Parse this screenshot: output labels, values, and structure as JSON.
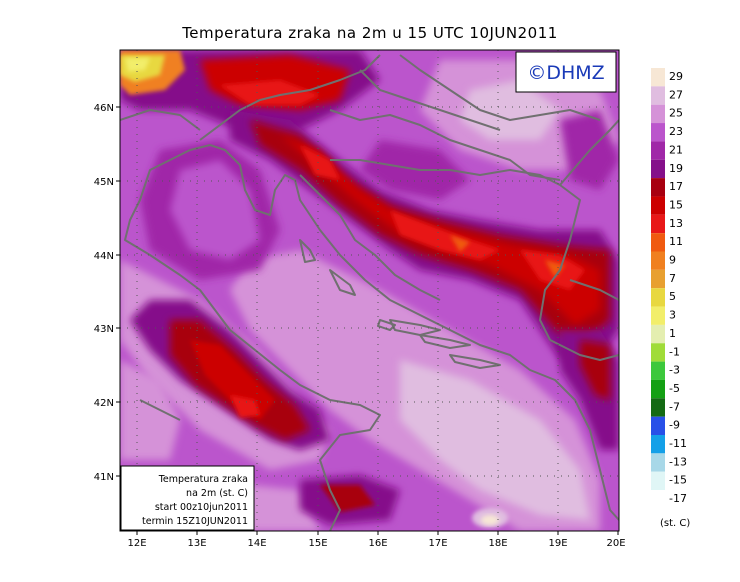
{
  "title": "Temperatura zraka na 2m u 15 UTC 10JUN2011",
  "logo_text": "©DHMZ",
  "lat_ticks": [
    "46N",
    "45N",
    "44N",
    "43N",
    "42N",
    "41N"
  ],
  "lon_ticks": [
    "12E",
    "13E",
    "14E",
    "15E",
    "16E",
    "17E",
    "18E",
    "19E",
    "20E"
  ],
  "info_box": {
    "line1": "Temperatura zraka",
    "line2": "na 2m (st. C)",
    "line3": "start 00z10jun2011",
    "line4": "termin 15Z10JUN2011"
  },
  "legend": {
    "unit": "(st. C)",
    "entries": [
      {
        "label": "29",
        "color": "#f7e7d5"
      },
      {
        "label": "27",
        "color": "#e0bde0"
      },
      {
        "label": "25",
        "color": "#d592d8"
      },
      {
        "label": "23",
        "color": "#bb55cc"
      },
      {
        "label": "21",
        "color": "#a028a8"
      },
      {
        "label": "19",
        "color": "#85108a"
      },
      {
        "label": "17",
        "color": "#a80010"
      },
      {
        "label": "15",
        "color": "#cc0000"
      },
      {
        "label": "13",
        "color": "#e81818"
      },
      {
        "label": "11",
        "color": "#f05a10"
      },
      {
        "label": "9",
        "color": "#f08020"
      },
      {
        "label": "7",
        "color": "#e8a030"
      },
      {
        "label": "5",
        "color": "#e8d840"
      },
      {
        "label": "3",
        "color": "#f2ee6a"
      },
      {
        "label": "1",
        "color": "#e4eeb0"
      },
      {
        "label": "-1",
        "color": "#a0dc38"
      },
      {
        "label": "-3",
        "color": "#3cc83c"
      },
      {
        "label": "-5",
        "color": "#14a014"
      },
      {
        "label": "-7",
        "color": "#146a14"
      },
      {
        "label": "-9",
        "color": "#2850e8"
      },
      {
        "label": "-11",
        "color": "#14a0e8"
      },
      {
        "label": "-13",
        "color": "#a8d8e8"
      },
      {
        "label": "-15",
        "color": "#e0f6f6"
      },
      {
        "label": "-17",
        "color": "#ffffff"
      }
    ]
  }
}
